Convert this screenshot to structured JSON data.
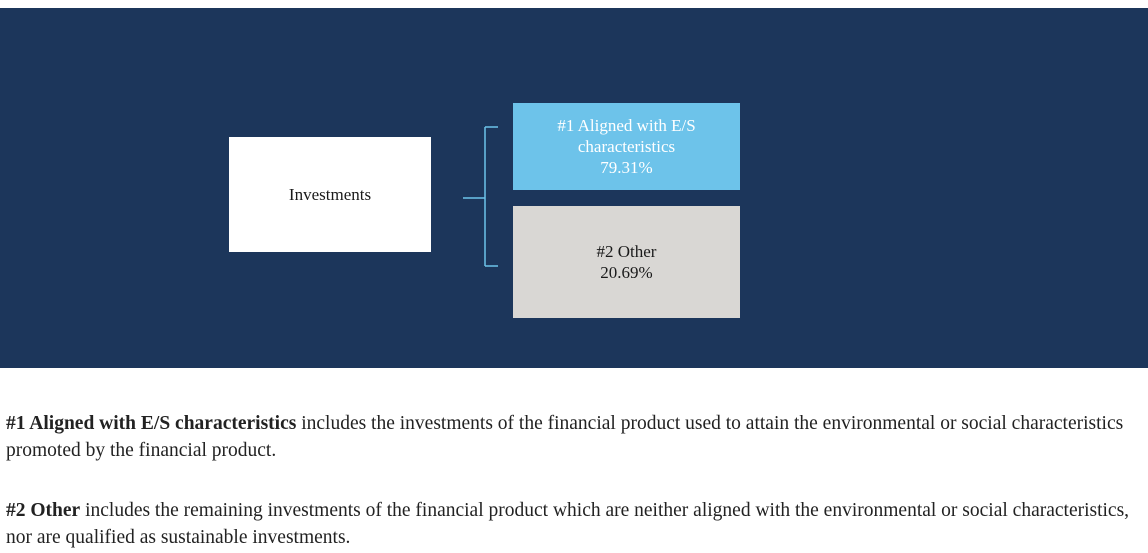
{
  "nodes": [
    {
      "lines": [
        "Investments"
      ]
    },
    {
      "lines": [
        "#1 Aligned with E/S",
        "characteristics",
        "79.31%"
      ]
    },
    {
      "lines": [
        "#2 Other",
        "20.69%"
      ]
    }
  ],
  "legend": [
    {
      "term": "#1 Aligned with E/S characteristics",
      "text": " includes the investments of the financial product used to attain the environmental or social characteristics promoted by the financial product."
    },
    {
      "term": "#2 Other",
      "text": " includes the remaining investments of the financial product which are neither aligned with the environmental or social characteristics, nor are qualified as sustainable investments."
    }
  ]
}
